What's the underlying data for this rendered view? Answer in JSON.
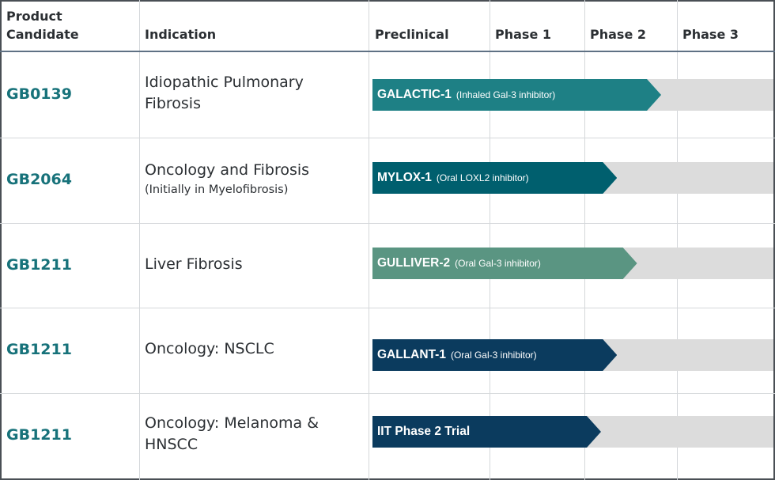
{
  "headers": {
    "product": "Product Candidate",
    "product_l1": "Product",
    "product_l2": "Candidate",
    "indication": "Indication",
    "phases": [
      "Preclinical",
      "Phase 1",
      "Phase 2",
      "Phase 3"
    ]
  },
  "rows": [
    {
      "code": "GB0139",
      "indication": "Idiopathic Pulmonary Fibrosis",
      "ind_l1": "Idiopathic Pulmonary",
      "ind_l2": "Fibrosis",
      "sub": "",
      "trial": "GALACTIC-1",
      "trial_desc": "(Inhaled Gal-3 inhibitor)",
      "color": "#1e8085",
      "progress_pct": 72
    },
    {
      "code": "GB2064",
      "indication": "Oncology and Fibrosis",
      "ind_l1": "Oncology and Fibrosis",
      "ind_l2": "",
      "sub": "(Initially in Myelofibrosis)",
      "trial": "MYLOX-1",
      "trial_desc": "(Oral LOXL2 inhibitor)",
      "color": "#005f6e",
      "progress_pct": 61
    },
    {
      "code": "GB1211",
      "indication": "Liver Fibrosis",
      "ind_l1": "Liver Fibrosis",
      "ind_l2": "",
      "sub": "",
      "trial": "GULLIVER-2",
      "trial_desc": "(Oral Gal-3 inhibitor)",
      "color": "#5a9582",
      "progress_pct": 66
    },
    {
      "code": "GB1211",
      "indication": "Oncology: NSCLC",
      "ind_l1": "Oncology: NSCLC",
      "ind_l2": "",
      "sub": "",
      "trial": "GALLANT-1",
      "trial_desc": "(Oral Gal-3 inhibitor)",
      "color": "#0b3b5e",
      "progress_pct": 61
    },
    {
      "code": "GB1211",
      "indication": "Oncology: Melanoma & HNSCC",
      "ind_l1": "Oncology: Melanoma &",
      "ind_l2": "HNSCC",
      "sub": "",
      "trial": "IIT Phase 2 Trial",
      "trial_desc": "",
      "color": "#0b3b5e",
      "progress_pct": 57
    }
  ],
  "colors": {
    "track": "#dcdcdc",
    "code_text": "#17727a",
    "header_rule": "#5f7184"
  }
}
